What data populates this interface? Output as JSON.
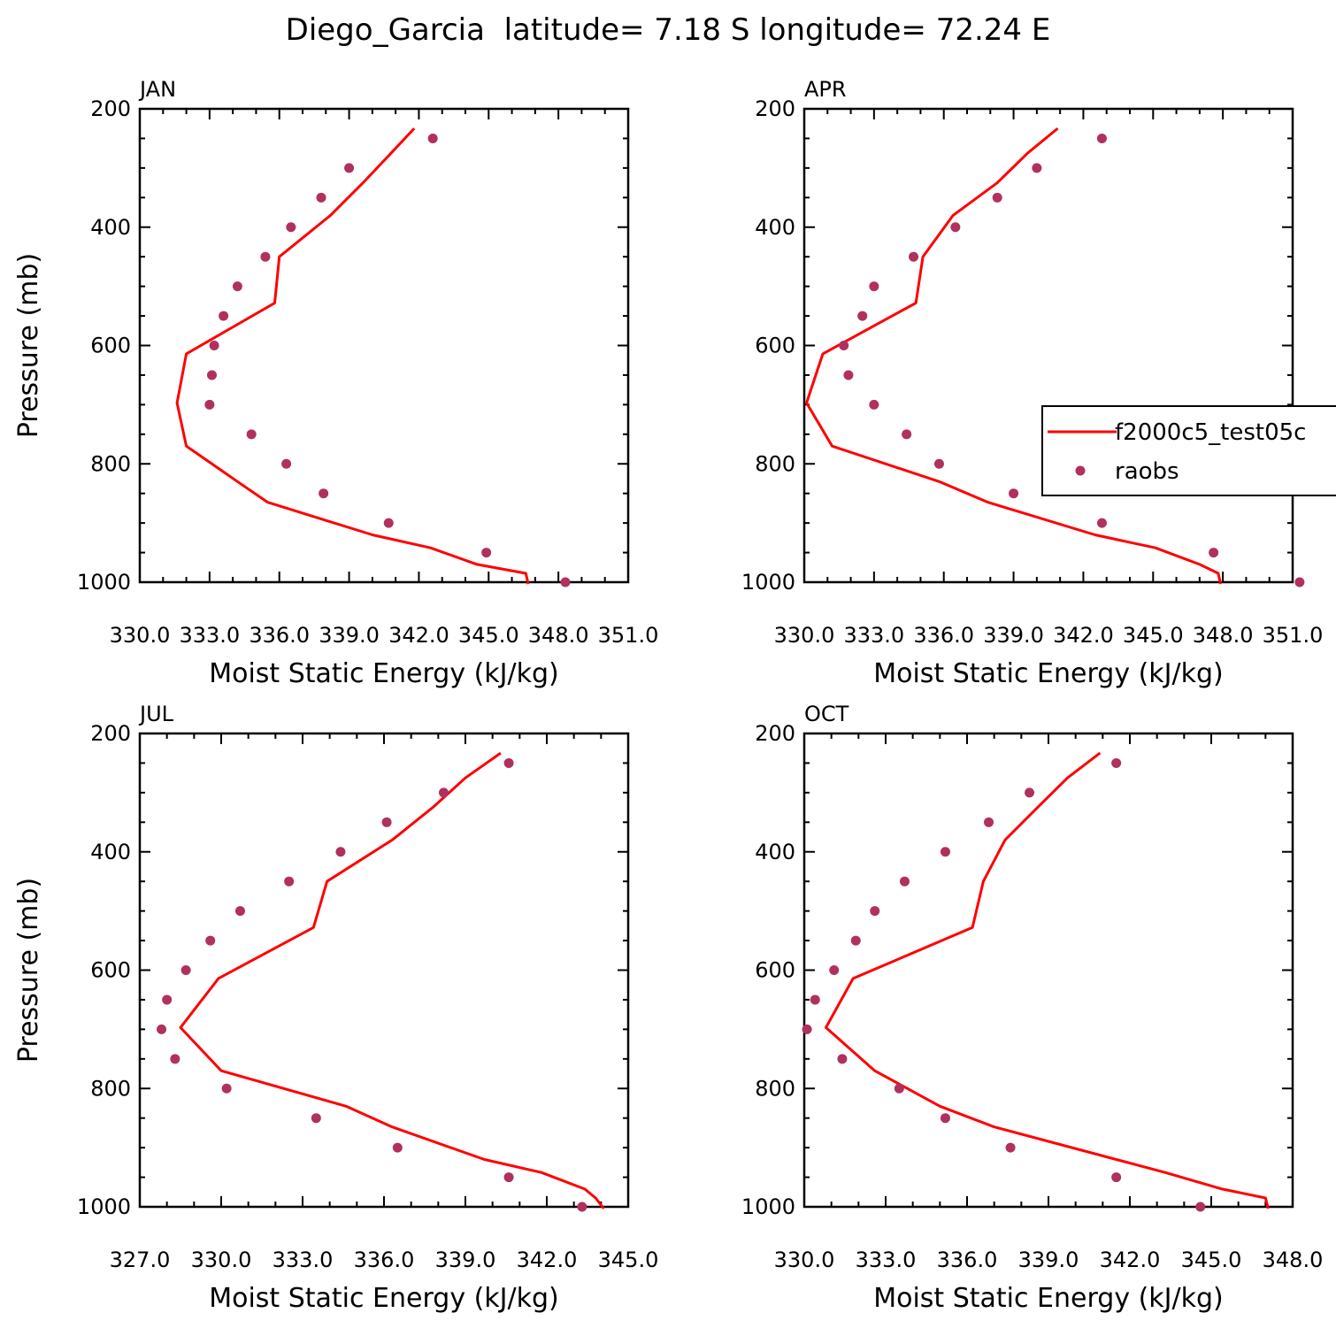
{
  "figure_title": "Diego_Garcia  latitude= 7.18 S longitude= 72.24 E",
  "colors": {
    "model": "#ff0000",
    "obs": "#b03060"
  },
  "legend": {
    "model_label": "f2000c5_test05c",
    "obs_label": "raobs"
  },
  "chart_data": [
    {
      "type": "line",
      "title": "JAN",
      "xlabel": "Moist Static Energy (kJ/kg)",
      "ylabel": "Pressure (mb)",
      "xlim": [
        330.0,
        351.0
      ],
      "xticks": [
        330.0,
        333.0,
        336.0,
        339.0,
        342.0,
        345.0,
        348.0,
        351.0
      ],
      "xtick_labels": [
        "330.0",
        "333.0",
        "336.0",
        "339.0",
        "342.0",
        "345.0",
        "348.0",
        "351.0"
      ],
      "ylim": [
        1000,
        200
      ],
      "yticks": [
        200,
        400,
        600,
        800,
        1000
      ],
      "ytick_labels": [
        "200",
        "400",
        "600",
        "800",
        "1000"
      ],
      "series": [
        {
          "kind": "line",
          "p": [
            233,
            275,
            325,
            380,
            450,
            528,
            614,
            697,
            770,
            830,
            865,
            920,
            942,
            970,
            985,
            1003
          ],
          "x": [
            341.8,
            340.8,
            339.6,
            338.2,
            336.0,
            335.8,
            332.0,
            331.6,
            332.0,
            334.2,
            335.5,
            340.0,
            342.5,
            344.5,
            346.6,
            346.7
          ]
        },
        {
          "kind": "scatter",
          "p": [
            250,
            300,
            350,
            400,
            450,
            500,
            550,
            600,
            650,
            700,
            750,
            800,
            850,
            900,
            950,
            1000
          ],
          "x": [
            342.6,
            339.0,
            337.8,
            336.5,
            335.4,
            334.2,
            333.6,
            333.2,
            333.1,
            333.0,
            334.8,
            336.3,
            337.9,
            340.7,
            344.9,
            348.3
          ]
        }
      ]
    },
    {
      "type": "line",
      "title": "APR",
      "xlabel": "Moist Static Energy (kJ/kg)",
      "ylabel": "",
      "xlim": [
        330.0,
        351.0
      ],
      "xticks": [
        330.0,
        333.0,
        336.0,
        339.0,
        342.0,
        345.0,
        348.0,
        351.0
      ],
      "xtick_labels": [
        "330.0",
        "333.0",
        "336.0",
        "339.0",
        "342.0",
        "345.0",
        "348.0",
        "351.0"
      ],
      "ylim": [
        1000,
        200
      ],
      "yticks": [
        200,
        400,
        600,
        800,
        1000
      ],
      "ytick_labels": [
        "200",
        "400",
        "600",
        "800",
        "1000"
      ],
      "series": [
        {
          "kind": "line",
          "p": [
            233,
            275,
            325,
            380,
            450,
            528,
            614,
            697,
            770,
            830,
            865,
            920,
            942,
            970,
            985,
            1003
          ],
          "x": [
            340.9,
            339.6,
            338.3,
            336.4,
            335.1,
            334.8,
            330.8,
            330.1,
            331.2,
            335.8,
            337.9,
            342.5,
            345.1,
            347.0,
            347.8,
            347.9
          ]
        },
        {
          "kind": "scatter",
          "p": [
            250,
            300,
            350,
            400,
            450,
            500,
            550,
            600,
            650,
            700,
            750,
            800,
            850,
            900,
            950,
            1000
          ],
          "x": [
            342.8,
            340.0,
            338.3,
            336.5,
            334.7,
            333.0,
            332.5,
            331.7,
            331.9,
            333.0,
            334.4,
            335.8,
            339.0,
            342.8,
            347.6,
            351.3
          ]
        }
      ]
    },
    {
      "type": "line",
      "title": "JUL",
      "xlabel": "Moist Static Energy (kJ/kg)",
      "ylabel": "Pressure (mb)",
      "xlim": [
        327.0,
        345.0
      ],
      "xticks": [
        327.0,
        330.0,
        333.0,
        336.0,
        339.0,
        342.0,
        345.0
      ],
      "xtick_labels": [
        "327.0",
        "330.0",
        "333.0",
        "336.0",
        "339.0",
        "342.0",
        "345.0"
      ],
      "ylim": [
        1000,
        200
      ],
      "yticks": [
        200,
        400,
        600,
        800,
        1000
      ],
      "ytick_labels": [
        "200",
        "400",
        "600",
        "800",
        "1000"
      ],
      "series": [
        {
          "kind": "line",
          "p": [
            233,
            275,
            325,
            380,
            450,
            528,
            614,
            697,
            770,
            830,
            865,
            920,
            942,
            970,
            985,
            1003
          ],
          "x": [
            340.3,
            339.0,
            337.8,
            336.3,
            333.9,
            333.4,
            329.9,
            328.5,
            330.0,
            334.6,
            336.3,
            339.7,
            341.8,
            343.4,
            343.8,
            344.1
          ]
        },
        {
          "kind": "scatter",
          "p": [
            250,
            300,
            350,
            400,
            450,
            500,
            550,
            600,
            650,
            700,
            750,
            800,
            850,
            900,
            950,
            1000
          ],
          "x": [
            340.6,
            338.2,
            336.1,
            334.4,
            332.5,
            330.7,
            329.6,
            328.7,
            328.0,
            327.8,
            328.3,
            330.2,
            333.5,
            336.5,
            340.6,
            343.3
          ]
        }
      ]
    },
    {
      "type": "line",
      "title": "OCT",
      "xlabel": "Moist Static Energy (kJ/kg)",
      "ylabel": "",
      "xlim": [
        330.0,
        348.0
      ],
      "xticks": [
        330.0,
        333.0,
        336.0,
        339.0,
        342.0,
        345.0,
        348.0
      ],
      "xtick_labels": [
        "330.0",
        "333.0",
        "336.0",
        "339.0",
        "342.0",
        "345.0",
        "348.0"
      ],
      "ylim": [
        1000,
        200
      ],
      "yticks": [
        200,
        400,
        600,
        800,
        1000
      ],
      "ytick_labels": [
        "200",
        "400",
        "600",
        "800",
        "1000"
      ],
      "series": [
        {
          "kind": "line",
          "p": [
            233,
            275,
            325,
            380,
            450,
            528,
            614,
            697,
            770,
            830,
            865,
            920,
            942,
            970,
            985,
            1003
          ],
          "x": [
            340.9,
            339.7,
            338.6,
            337.4,
            336.6,
            336.2,
            331.8,
            330.8,
            332.6,
            335.0,
            337.0,
            341.5,
            343.3,
            345.4,
            347.0,
            347.1
          ]
        },
        {
          "kind": "scatter",
          "p": [
            250,
            300,
            350,
            400,
            450,
            500,
            550,
            600,
            650,
            700,
            750,
            800,
            850,
            900,
            950,
            1000
          ],
          "x": [
            341.5,
            338.3,
            336.8,
            335.2,
            333.7,
            332.6,
            331.9,
            331.1,
            330.4,
            330.1,
            331.4,
            333.5,
            335.2,
            337.6,
            341.5,
            344.6
          ]
        }
      ]
    }
  ]
}
